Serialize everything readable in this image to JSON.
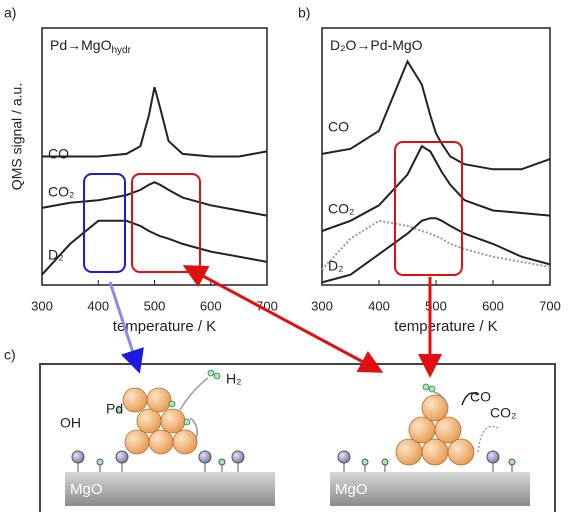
{
  "chart_data": [
    {
      "type": "line",
      "panel_label": "a)",
      "title": "Pd→MgO",
      "title_subscript": "hydr",
      "x_label": "temperature / K",
      "y_label": "QMS signal / a.u.",
      "x": [
        300,
        350,
        400,
        450,
        475,
        490,
        500,
        510,
        525,
        550,
        600,
        650,
        700
      ],
      "xlim": [
        300,
        700
      ],
      "xticks": [
        300,
        400,
        500,
        600,
        700
      ],
      "ylim": [
        0,
        10
      ],
      "series": [
        {
          "name": "CO",
          "color": "#222222",
          "values": [
            5.0,
            5.0,
            5.0,
            5.1,
            5.4,
            6.6,
            7.7,
            6.9,
            5.6,
            5.1,
            5.0,
            5.0,
            5.2
          ]
        },
        {
          "name": "CO₂",
          "color": "#222222",
          "values": [
            3.0,
            3.2,
            3.3,
            3.5,
            3.7,
            3.9,
            4.0,
            3.9,
            3.7,
            3.4,
            3.1,
            2.9,
            2.7
          ]
        },
        {
          "name": "D₂",
          "color": "#222222",
          "values": [
            0.4,
            1.6,
            2.5,
            2.5,
            2.3,
            2.1,
            2.0,
            1.9,
            1.8,
            1.6,
            1.3,
            1.1,
            0.9
          ]
        }
      ]
    },
    {
      "type": "line",
      "panel_label": "b)",
      "title": "D₂O→Pd-MgO",
      "x_label": "temperature / K",
      "x": [
        300,
        350,
        400,
        450,
        475,
        490,
        500,
        510,
        525,
        550,
        600,
        650,
        700
      ],
      "xlim": [
        300,
        700
      ],
      "xticks": [
        300,
        400,
        500,
        600,
        700
      ],
      "ylim": [
        0,
        10
      ],
      "series": [
        {
          "name": "CO",
          "color": "#222222",
          "values": [
            5.1,
            5.3,
            6.0,
            8.7,
            7.8,
            6.6,
            5.9,
            5.5,
            5.0,
            4.7,
            4.5,
            4.5,
            4.9
          ]
        },
        {
          "name": "CO₂",
          "color": "#222222",
          "values": [
            2.1,
            2.5,
            3.1,
            4.3,
            5.4,
            5.2,
            4.8,
            4.4,
            3.9,
            3.3,
            2.9,
            2.8,
            2.7
          ]
        },
        {
          "name": "D₂",
          "color": "#222222",
          "values": [
            0.1,
            0.4,
            1.2,
            2.0,
            2.5,
            2.6,
            2.6,
            2.5,
            2.3,
            2.0,
            1.6,
            1.1,
            0.8
          ]
        },
        {
          "color": "#999999",
          "dashed": true,
          "values": [
            0.6,
            1.8,
            2.5,
            2.3,
            2.1,
            2.0,
            1.9,
            1.8,
            1.6,
            1.4,
            1.1,
            0.9,
            0.7
          ]
        }
      ]
    }
  ],
  "diagram": {
    "panel_label": "c)",
    "h2": "H₂",
    "pd": "Pd",
    "oh": "OH",
    "support_left": "MgO",
    "support_right": "MgO",
    "co": "CO",
    "co2": "CO₂"
  }
}
